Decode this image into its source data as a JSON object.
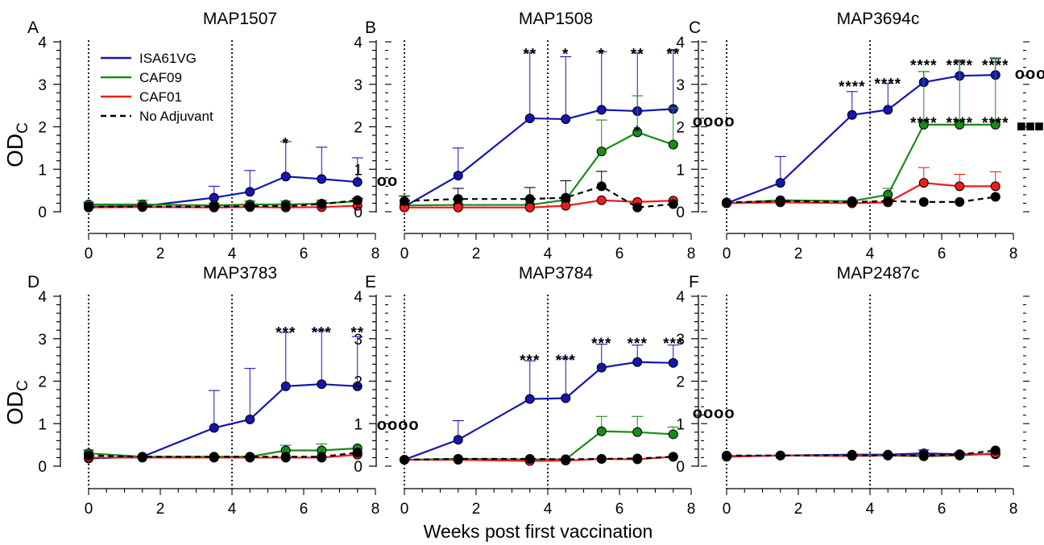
{
  "chart_data": {
    "type": "line",
    "xlabel": "Weeks post first vaccination",
    "ylabel_main": "OD",
    "ylabel_sub": "C",
    "xlim": [
      0,
      8
    ],
    "ylim": [
      0,
      4
    ],
    "xticks": [
      0,
      2,
      4,
      6,
      8
    ],
    "yticks": [
      0,
      1,
      2,
      3,
      4
    ],
    "vaccination_weeks": [
      0,
      4
    ],
    "x": [
      0,
      1.5,
      3.5,
      4.5,
      5.5,
      6.5,
      7.5
    ],
    "legend": [
      {
        "name": "ISA61VG",
        "color": "#1515b0",
        "dashed": false
      },
      {
        "name": "CAF09",
        "color": "#1a8a1a",
        "dashed": false
      },
      {
        "name": "CAF01",
        "color": "#ee1c1c",
        "dashed": false
      },
      {
        "name": "No Adjuvant",
        "color": "#000000",
        "dashed": true
      }
    ],
    "panels": [
      {
        "letter": "A",
        "title": "MAP1507",
        "series": [
          {
            "name": "ISA61VG",
            "values": [
              0.12,
              0.13,
              0.33,
              0.47,
              0.83,
              0.77,
              0.7
            ],
            "errors": [
              0,
              0,
              0.27,
              0.5,
              0.82,
              0.75,
              0.57
            ]
          },
          {
            "name": "CAF09",
            "values": [
              0.17,
              0.17,
              0.15,
              0.17,
              0.17,
              0.19,
              0.25
            ],
            "errors": [
              0.05,
              0.1,
              0.05,
              0.08,
              0.08,
              0.08,
              0.06
            ]
          },
          {
            "name": "CAF01",
            "values": [
              0.1,
              0.11,
              0.1,
              0.11,
              0.1,
              0.11,
              0.14
            ],
            "errors": [
              0,
              0,
              0,
              0,
              0,
              0,
              0
            ]
          },
          {
            "name": "No Adjuvant",
            "values": [
              0.12,
              0.12,
              0.12,
              0.13,
              0.13,
              0.18,
              0.27
            ],
            "errors": [
              0,
              0,
              0,
              0,
              0,
              0.04,
              0.04
            ]
          }
        ],
        "stars": [
          {
            "x": 5.5,
            "y": 1.72,
            "text": "*"
          }
        ],
        "end_mark": {
          "y": 0.7,
          "text": "oo",
          "kind": "circle"
        }
      },
      {
        "letter": "B",
        "title": "MAP1508",
        "series": [
          {
            "name": "ISA61VG",
            "values": [
              0.12,
              0.85,
              2.2,
              2.18,
              2.4,
              2.37,
              2.42
            ],
            "errors": [
              0,
              0.65,
              1.55,
              1.47,
              1.37,
              1.37,
              1.4
            ]
          },
          {
            "name": "CAF09",
            "values": [
              0.15,
              0.16,
              0.16,
              0.28,
              1.42,
              1.87,
              1.58
            ],
            "errors": [
              0,
              0,
              0,
              0,
              0.74,
              0.86,
              0.86
            ]
          },
          {
            "name": "CAF01",
            "values": [
              0.1,
              0.1,
              0.1,
              0.14,
              0.27,
              0.23,
              0.26
            ],
            "errors": [
              0,
              0,
              0,
              0,
              0,
              0,
              0
            ]
          },
          {
            "name": "No Adjuvant",
            "values": [
              0.25,
              0.3,
              0.3,
              0.33,
              0.6,
              0.1,
              0.18
            ],
            "errors": [
              0.12,
              0.25,
              0.27,
              0.4,
              0.35,
              0,
              0
            ]
          }
        ],
        "stars": [
          {
            "x": 3.5,
            "y": 3.82,
            "text": "**"
          },
          {
            "x": 4.5,
            "y": 3.82,
            "text": "*"
          },
          {
            "x": 5.5,
            "y": 3.82,
            "text": "*"
          },
          {
            "x": 6.5,
            "y": 3.82,
            "text": "**"
          },
          {
            "x": 7.5,
            "y": 3.82,
            "text": "**"
          },
          {
            "x": 6.5,
            "y": 2.0,
            "text": "*"
          }
        ],
        "end_mark": {
          "y": 2.1,
          "text": "oooo",
          "kind": "circle"
        }
      },
      {
        "letter": "C",
        "title": "MAP3694c",
        "series": [
          {
            "name": "ISA61VG",
            "values": [
              0.2,
              0.68,
              2.28,
              2.4,
              3.05,
              3.2,
              3.22
            ],
            "errors": [
              0,
              0.62,
              0.55,
              0.62,
              0.25,
              0.37,
              0.4
            ]
          },
          {
            "name": "CAF09",
            "values": [
              0.2,
              0.27,
              0.25,
              0.4,
              2.05,
              2.05,
              2.05
            ],
            "errors": [
              0,
              0,
              0,
              0.15,
              1.25,
              1.5,
              1.55
            ]
          },
          {
            "name": "CAF01",
            "values": [
              0.2,
              0.22,
              0.2,
              0.22,
              0.68,
              0.6,
              0.6
            ],
            "errors": [
              0,
              0,
              0,
              0,
              0.36,
              0.28,
              0.34
            ]
          },
          {
            "name": "No Adjuvant",
            "values": [
              0.22,
              0.25,
              0.23,
              0.25,
              0.23,
              0.23,
              0.35
            ],
            "errors": [
              0,
              0,
              0,
              0,
              0,
              0,
              0
            ]
          }
        ],
        "stars": [
          {
            "x": 3.5,
            "y": 3.05,
            "text": "****"
          },
          {
            "x": 4.5,
            "y": 3.12,
            "text": "****"
          },
          {
            "x": 5.5,
            "y": 3.55,
            "text": "****"
          },
          {
            "x": 6.5,
            "y": 3.55,
            "text": "****"
          },
          {
            "x": 7.5,
            "y": 3.55,
            "text": "****"
          },
          {
            "x": 5.5,
            "y": 2.2,
            "text": "****"
          },
          {
            "x": 6.5,
            "y": 2.2,
            "text": "****"
          },
          {
            "x": 7.5,
            "y": 2.2,
            "text": "****"
          }
        ],
        "end_mark": {
          "y": 3.22,
          "text": "oooo",
          "kind": "circle"
        },
        "end_mark2": {
          "y": 2.05,
          "text": "■■■■",
          "kind": "square"
        }
      },
      {
        "letter": "D",
        "title": "MAP3783",
        "series": [
          {
            "name": "ISA61VG",
            "values": [
              0.18,
              0.22,
              0.9,
              1.1,
              1.88,
              1.93,
              1.88
            ],
            "errors": [
              0,
              0,
              0.88,
              1.2,
              1.27,
              1.26,
              1.17
            ]
          },
          {
            "name": "CAF09",
            "values": [
              0.3,
              0.22,
              0.22,
              0.22,
              0.37,
              0.37,
              0.42
            ],
            "errors": [
              0.08,
              0,
              0,
              0,
              0.12,
              0.15,
              0
            ]
          },
          {
            "name": "CAF01",
            "values": [
              0.2,
              0.2,
              0.2,
              0.2,
              0.2,
              0.2,
              0.27
            ],
            "errors": [
              0,
              0,
              0,
              0,
              0,
              0,
              0
            ]
          },
          {
            "name": "No Adjuvant",
            "values": [
              0.25,
              0.22,
              0.22,
              0.22,
              0.22,
              0.22,
              0.32
            ],
            "errors": [
              0,
              0,
              0,
              0,
              0,
              0,
              0
            ]
          }
        ],
        "stars": [
          {
            "x": 5.5,
            "y": 3.25,
            "text": "***"
          },
          {
            "x": 6.5,
            "y": 3.25,
            "text": "***"
          },
          {
            "x": 7.5,
            "y": 3.25,
            "text": "**"
          }
        ],
        "end_mark": {
          "y": 0.95,
          "text": "oooo",
          "kind": "circle"
        }
      },
      {
        "letter": "E",
        "title": "MAP3784",
        "series": [
          {
            "name": "ISA61VG",
            "values": [
              0.15,
              0.62,
              1.58,
              1.6,
              2.32,
              2.45,
              2.43
            ],
            "errors": [
              0,
              0.45,
              0.9,
              0.93,
              0.55,
              0.4,
              0.42
            ]
          },
          {
            "name": "CAF09",
            "values": [
              0.15,
              0.17,
              0.16,
              0.16,
              0.82,
              0.8,
              0.75
            ],
            "errors": [
              0,
              0,
              0,
              0,
              0.35,
              0.37,
              0.17
            ]
          },
          {
            "name": "CAF01",
            "values": [
              0.15,
              0.15,
              0.12,
              0.13,
              0.17,
              0.16,
              0.22
            ],
            "errors": [
              0,
              0,
              0,
              0,
              0,
              0,
              0
            ]
          },
          {
            "name": "No Adjuvant",
            "values": [
              0.15,
              0.17,
              0.17,
              0.16,
              0.17,
              0.18,
              0.22
            ],
            "errors": [
              0,
              0,
              0,
              0,
              0,
              0,
              0
            ]
          }
        ],
        "stars": [
          {
            "x": 3.5,
            "y": 2.6,
            "text": "***"
          },
          {
            "x": 4.5,
            "y": 2.6,
            "text": "***"
          },
          {
            "x": 5.5,
            "y": 3.0,
            "text": "***"
          },
          {
            "x": 6.5,
            "y": 3.0,
            "text": "***"
          },
          {
            "x": 7.5,
            "y": 3.0,
            "text": "***"
          }
        ],
        "end_mark": {
          "y": 1.22,
          "text": "oooo",
          "kind": "circle"
        }
      },
      {
        "letter": "F",
        "title": "MAP2487c",
        "series": [
          {
            "name": "ISA61VG",
            "values": [
              0.22,
              0.25,
              0.27,
              0.27,
              0.3,
              0.28,
              0.28
            ],
            "errors": [
              0,
              0,
              0,
              0,
              0.08,
              0.04,
              0
            ]
          },
          {
            "name": "CAF09",
            "values": [
              0.24,
              0.25,
              0.25,
              0.25,
              0.23,
              0.25,
              0.3
            ],
            "errors": [
              0,
              0,
              0,
              0,
              0,
              0,
              0
            ]
          },
          {
            "name": "CAF01",
            "values": [
              0.23,
              0.25,
              0.24,
              0.25,
              0.25,
              0.25,
              0.3
            ],
            "errors": [
              0,
              0,
              0,
              0,
              0,
              0,
              0
            ]
          },
          {
            "name": "No Adjuvant",
            "values": [
              0.25,
              0.25,
              0.25,
              0.25,
              0.25,
              0.27,
              0.37
            ],
            "errors": [
              0,
              0,
              0,
              0,
              0,
              0,
              0
            ]
          }
        ],
        "stars": [],
        "end_mark": null
      }
    ]
  }
}
